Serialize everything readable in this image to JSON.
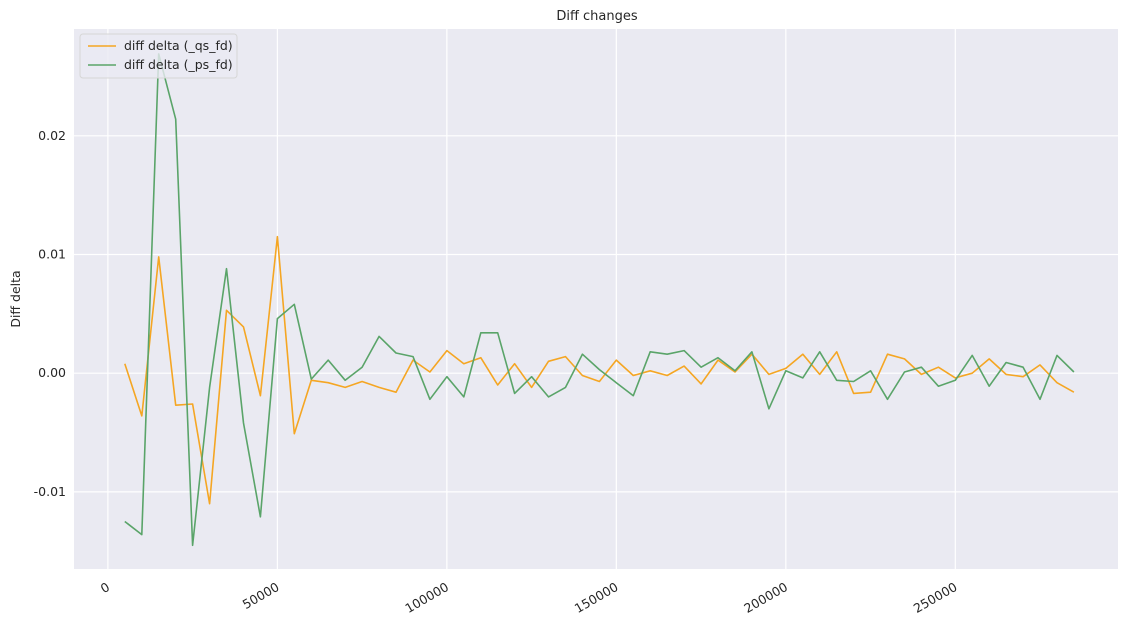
{
  "chart_data": {
    "type": "line",
    "title": "Diff changes",
    "xlabel": "",
    "ylabel": "Diff delta",
    "xlim": [
      -10000,
      298000
    ],
    "ylim": [
      -0.0165,
      0.029
    ],
    "x_ticks": [
      0,
      50000,
      100000,
      150000,
      200000,
      250000
    ],
    "x_tick_labels": [
      "0",
      "50000",
      "100000",
      "150000",
      "200000",
      "250000"
    ],
    "y_ticks": [
      -0.01,
      0.0,
      0.01,
      0.02
    ],
    "y_tick_labels": [
      "-0.01",
      "0.00",
      "0.01",
      "0.02"
    ],
    "grid": true,
    "legend_position": "top-left",
    "background": "#eaeaf2",
    "x": [
      5000,
      10000,
      15000,
      20000,
      25000,
      30000,
      35000,
      40000,
      45000,
      50000,
      55000,
      60000,
      65000,
      70000,
      75000,
      80000,
      85000,
      90000,
      95000,
      100000,
      105000,
      110000,
      115000,
      120000,
      125000,
      130000,
      135000,
      140000,
      145000,
      150000,
      155000,
      160000,
      165000,
      170000,
      175000,
      180000,
      185000,
      190000,
      195000,
      200000,
      205000,
      210000,
      215000,
      220000,
      225000,
      230000,
      235000,
      240000,
      245000,
      250000,
      255000,
      260000,
      265000,
      270000,
      275000,
      280000,
      285000
    ],
    "series": [
      {
        "name": "diff delta (_qs_fd)",
        "color": "#f5a623",
        "values": [
          0.0008,
          -0.0036,
          0.0098,
          -0.0027,
          -0.0026,
          -0.011,
          0.0053,
          0.0039,
          -0.0019,
          0.0115,
          -0.0051,
          -0.0006,
          -0.0008,
          -0.0012,
          -0.0007,
          -0.0012,
          -0.0016,
          0.0011,
          0.0001,
          0.0019,
          0.0008,
          0.0013,
          -0.001,
          0.0008,
          -0.0012,
          0.001,
          0.0014,
          -0.0002,
          -0.0007,
          0.0011,
          -0.0002,
          0.0002,
          -0.0002,
          0.0006,
          -0.0009,
          0.0011,
          0.0001,
          0.0016,
          -0.0001,
          0.0004,
          0.0016,
          -0.0001,
          0.0018,
          -0.0017,
          -0.0016,
          0.0016,
          0.0012,
          -0.0001,
          0.0005,
          -0.0004,
          0.0,
          0.0012,
          -0.0001,
          -0.0003,
          0.0007,
          -0.0008,
          -0.0016
        ]
      },
      {
        "name": "diff delta (_ps_fd)",
        "color": "#5aa469",
        "values": [
          -0.0125,
          -0.0136,
          0.0269,
          0.0214,
          -0.0145,
          -0.0012,
          0.0088,
          -0.0042,
          -0.0121,
          0.0046,
          0.0058,
          -0.0005,
          0.0011,
          -0.0006,
          0.0005,
          0.0031,
          0.0017,
          0.0014,
          -0.0022,
          -0.0003,
          -0.002,
          0.0034,
          0.0034,
          -0.0017,
          -0.0003,
          -0.002,
          -0.0012,
          0.0016,
          0.0003,
          -0.0008,
          -0.0019,
          0.0018,
          0.0016,
          0.0019,
          0.0005,
          0.0013,
          0.0002,
          0.0018,
          -0.003,
          0.0002,
          -0.0004,
          0.0018,
          -0.0006,
          -0.0007,
          0.0002,
          -0.0022,
          0.0001,
          0.0005,
          -0.0011,
          -0.0006,
          0.0015,
          -0.0011,
          0.0009,
          0.0005,
          -0.0022,
          0.0015,
          0.0001
        ]
      }
    ]
  }
}
